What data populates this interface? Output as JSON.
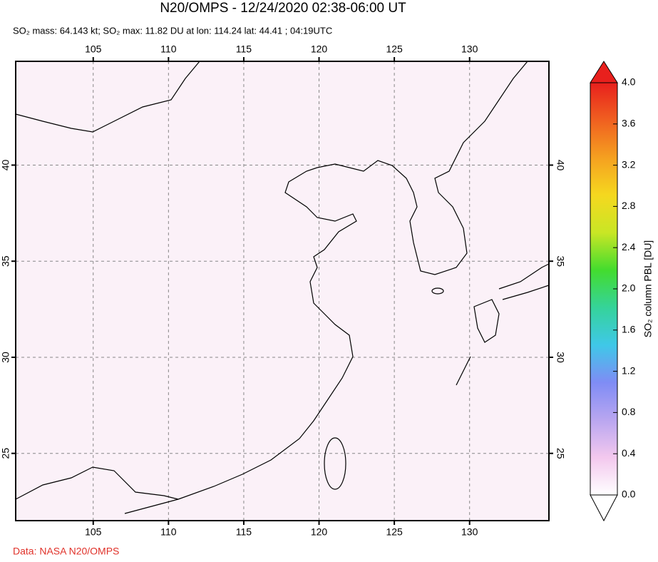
{
  "header": {
    "title": "N20/OMPS - 12/24/2020 02:38-06:00 UT",
    "subtitle": "SO₂ mass: 64.143 kt; SO₂ max: 11.82 DU at lon: 114.24 lat: 44.41 ; 04:19UTC"
  },
  "map": {
    "lonlim": [
      99.85,
      135.27
    ],
    "latlim": [
      21.5,
      45.4
    ],
    "lonticks": [
      105,
      110,
      115,
      120,
      125,
      130
    ],
    "latticks": [
      25,
      30,
      35,
      40
    ],
    "grid": true
  },
  "colorbar": {
    "label": "SO₂ column PBL [DU]",
    "lim": [
      0,
      4
    ],
    "ticks": [
      {
        "value": 0,
        "label": "0.0"
      },
      0.4,
      0.8,
      1.2,
      1.6,
      {
        "value": 2,
        "label": "2.0"
      },
      2.4,
      2.8,
      3.2,
      3.6,
      {
        "value": 4,
        "label": "4.0"
      }
    ],
    "colors": [
      "#ffffff",
      "#f3c8ee",
      "#b9a6f0",
      "#7f8cf5",
      "#3fc8e8",
      "#35d39a",
      "#43dc2e",
      "#c9e625",
      "#f5d81f",
      "#f5a020",
      "#f06020",
      "#e8201d"
    ]
  },
  "credit": "Data: NASA N20/OMPS"
}
